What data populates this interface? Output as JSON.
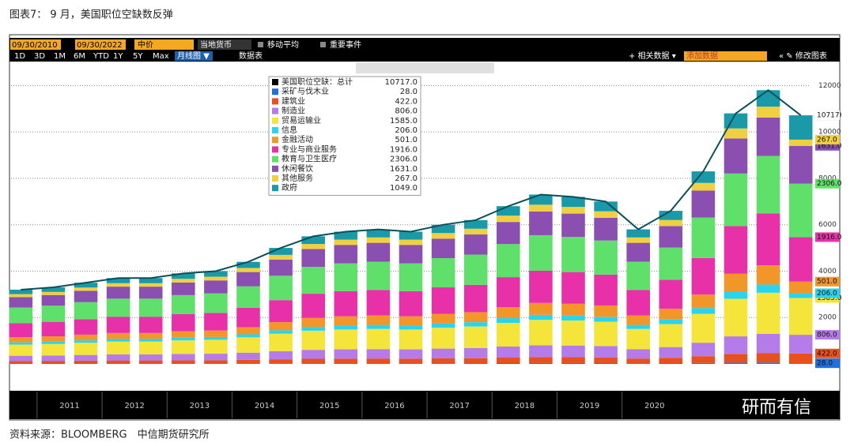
{
  "header": {
    "title": "图表7： 9 月，美国职位空缺数反弹"
  },
  "toolbar": {
    "start": "09/30/2010",
    "end": "09/30/2022",
    "price": "中价",
    "currency": "当地货币",
    "ma": "移动平均",
    "events": "重要事件",
    "periods": [
      "1D",
      "3D",
      "1M",
      "6M",
      "YTD",
      "1Y",
      "5Y",
      "Max"
    ],
    "view": "月线图 ▼",
    "table": "数据表",
    "related": "+ 相关数据 ▾",
    "add": "添加数据",
    "edit": "« ✎ 修改图表"
  },
  "chart_data": {
    "type": "bar",
    "stacked": true,
    "x": [
      2010.75,
      2011.25,
      2011.75,
      2012.25,
      2012.75,
      2013.25,
      2013.75,
      2014.25,
      2014.75,
      2015.25,
      2015.75,
      2016.25,
      2016.75,
      2017.25,
      2017.75,
      2018.25,
      2018.75,
      2019.25,
      2019.75,
      2020.25,
      2020.75,
      2021.25,
      2021.75,
      2022.25,
      2022.75
    ],
    "xlim": [
      2010.6,
      2022.9
    ],
    "xticks": [
      {
        "value": 2011.5,
        "label": "2011"
      },
      {
        "value": 2012.5,
        "label": "2012"
      },
      {
        "value": 2013.5,
        "label": "2013"
      },
      {
        "value": 2014.5,
        "label": "2014"
      },
      {
        "value": 2015.5,
        "label": "2015"
      },
      {
        "value": 2016.5,
        "label": "2016"
      },
      {
        "value": 2017.5,
        "label": "2017"
      },
      {
        "value": 2018.5,
        "label": "2018"
      },
      {
        "value": 2019.5,
        "label": "2019"
      },
      {
        "value": 2020.5,
        "label": "2020"
      }
    ],
    "ylim": [
      0,
      13000
    ],
    "yticks": [
      2000,
      4000,
      6000,
      8000,
      10000,
      12000
    ],
    "grid": true,
    "series": [
      {
        "name": "美国职位空缺：总计",
        "type": "line",
        "color": "#0a4f5a",
        "legend_color": "#000000",
        "legend_label": "10717.0",
        "tag_label": "10717",
        "tag_color": "#ffffff",
        "values": [
          3200,
          3300,
          3500,
          3700,
          3700,
          3900,
          4000,
          4400,
          5000,
          5500,
          5700,
          5800,
          5700,
          6000,
          6200,
          6800,
          7300,
          7200,
          7000,
          5800,
          6600,
          8300,
          10800,
          11800,
          10717
        ]
      },
      {
        "name": "采矿与伐木业",
        "color": "#1f6fe0",
        "legend_label": "28.0",
        "values": [
          16,
          17,
          18,
          19,
          19,
          20,
          20,
          22,
          25,
          28,
          29,
          29,
          29,
          30,
          31,
          34,
          37,
          36,
          35,
          29,
          33,
          42,
          54,
          59,
          28
        ]
      },
      {
        "name": "建筑业",
        "color": "#e8501e",
        "legend_label": "422.0",
        "values": [
          112,
          116,
          123,
          130,
          130,
          137,
          140,
          154,
          175,
          193,
          200,
          203,
          200,
          210,
          217,
          238,
          256,
          252,
          245,
          203,
          231,
          291,
          378,
          413,
          422
        ]
      },
      {
        "name": "制造业",
        "color": "#b57be8",
        "legend_label": "806.0",
        "values": [
          224,
          231,
          245,
          259,
          259,
          273,
          280,
          308,
          350,
          385,
          399,
          406,
          399,
          420,
          434,
          476,
          511,
          504,
          490,
          406,
          462,
          581,
          756,
          826,
          806
        ]
      },
      {
        "name": "贸易运输业",
        "color": "#f5e53a",
        "legend_label": "1585.0",
        "values": [
          480,
          495,
          525,
          555,
          555,
          585,
          600,
          660,
          750,
          825,
          855,
          870,
          855,
          900,
          930,
          1020,
          1095,
          1080,
          1050,
          870,
          990,
          1245,
          1620,
          1770,
          1585
        ]
      },
      {
        "name": "信息",
        "color": "#2ad4f0",
        "legend_label": "206.0",
        "values": [
          96,
          99,
          105,
          111,
          111,
          117,
          120,
          132,
          150,
          165,
          171,
          174,
          171,
          180,
          186,
          204,
          219,
          216,
          210,
          174,
          198,
          249,
          324,
          354,
          206
        ]
      },
      {
        "name": "金融活动",
        "color": "#f2962a",
        "legend_label": "501.0",
        "values": [
          224,
          231,
          245,
          259,
          259,
          273,
          280,
          308,
          350,
          385,
          399,
          406,
          399,
          420,
          434,
          476,
          511,
          504,
          490,
          406,
          462,
          581,
          756,
          826,
          501
        ]
      },
      {
        "name": "专业与商业服务",
        "color": "#e830a8",
        "legend_label": "1916.0",
        "values": [
          608,
          627,
          665,
          703,
          703,
          741,
          760,
          836,
          950,
          1045,
          1083,
          1102,
          1083,
          1140,
          1178,
          1292,
          1387,
          1368,
          1330,
          1102,
          1254,
          1577,
          2052,
          2242,
          1916
        ]
      },
      {
        "name": "教育与卫生医疗",
        "color": "#5fe06a",
        "legend_label": "2306.0",
        "values": [
          672,
          693,
          735,
          777,
          777,
          819,
          840,
          924,
          1050,
          1155,
          1197,
          1218,
          1197,
          1260,
          1302,
          1428,
          1533,
          1512,
          1470,
          1218,
          1386,
          1743,
          2268,
          2478,
          2306
        ]
      },
      {
        "name": "休闲餐饮",
        "color": "#8a4fb0",
        "legend_label": "1631.0",
        "values": [
          448,
          462,
          490,
          518,
          518,
          546,
          560,
          616,
          700,
          770,
          798,
          812,
          798,
          840,
          868,
          952,
          1022,
          1008,
          980,
          812,
          924,
          1162,
          1512,
          1652,
          1631
        ]
      },
      {
        "name": "其他服务",
        "color": "#f0d040",
        "legend_label": "267.0",
        "values": [
          128,
          132,
          140,
          148,
          148,
          156,
          160,
          176,
          200,
          220,
          228,
          232,
          228,
          240,
          248,
          272,
          292,
          288,
          280,
          232,
          264,
          332,
          432,
          472,
          267
        ]
      },
      {
        "name": "政府",
        "color": "#1a9aa8",
        "legend_label": "1049.0",
        "values": [
          192,
          198,
          210,
          222,
          222,
          234,
          240,
          264,
          300,
          330,
          342,
          348,
          342,
          360,
          372,
          408,
          438,
          432,
          420,
          348,
          396,
          498,
          648,
          708,
          1049
        ]
      }
    ]
  },
  "footer": {
    "source": "资料来源：BLOOMBERG　中信期货研究所"
  },
  "watermark": "研而有信"
}
